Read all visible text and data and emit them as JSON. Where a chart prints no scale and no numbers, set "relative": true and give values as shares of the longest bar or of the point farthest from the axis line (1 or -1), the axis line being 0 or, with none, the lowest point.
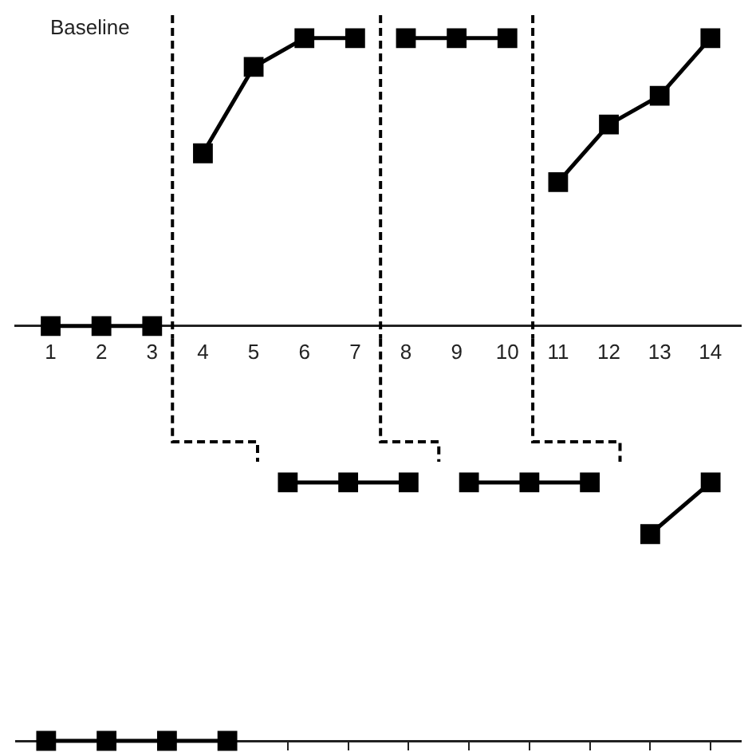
{
  "chart_data": [
    {
      "type": "line",
      "relative": true,
      "annotations": [
        "Baseline"
      ],
      "xlim": [
        0.3,
        14.6
      ],
      "xticks": [
        1,
        2,
        3,
        4,
        5,
        6,
        7,
        8,
        9,
        10,
        11,
        12,
        13,
        14
      ],
      "tick_labels": "x",
      "marker": "square",
      "line_style": "solid",
      "series": [
        {
          "color": "#000000",
          "x": [
            1,
            2,
            3
          ],
          "values": [
            0,
            0,
            0
          ]
        },
        {
          "color": "#000000",
          "x": [
            4,
            5,
            6,
            7
          ],
          "values": [
            0.6,
            0.9,
            1,
            1
          ]
        },
        {
          "color": "#000000",
          "x": [
            8,
            9,
            10
          ],
          "values": [
            1,
            1,
            1
          ]
        },
        {
          "color": "#000000",
          "x": [
            11,
            12,
            13,
            14
          ],
          "values": [
            0.5,
            0.7,
            0.8,
            1
          ]
        }
      ],
      "ref_lines": [
        {
          "axis": "x",
          "value": 3.4,
          "color": "#000000",
          "line_style": "dashed"
        },
        {
          "axis": "x",
          "value": 7.5,
          "color": "#000000",
          "line_style": "dashed"
        },
        {
          "axis": "x",
          "value": 10.5,
          "color": "#000000",
          "line_style": "dashed"
        }
      ]
    },
    {
      "type": "line",
      "relative": true,
      "categories": [
        null,
        null,
        null,
        null,
        null,
        null,
        null,
        null,
        null,
        null,
        null,
        null
      ],
      "tick_labels": false,
      "marker": "square",
      "line_style": "solid",
      "series": [
        {
          "color": "#000000",
          "values": [
            0,
            0,
            0,
            0,
            null,
            null,
            null,
            null,
            null,
            null,
            null,
            null
          ]
        },
        {
          "color": "#000000",
          "values": [
            null,
            null,
            null,
            null,
            1,
            1,
            1,
            null,
            null,
            null,
            null,
            null
          ]
        },
        {
          "color": "#000000",
          "values": [
            null,
            null,
            null,
            null,
            null,
            null,
            null,
            1,
            1,
            1,
            null,
            null
          ]
        },
        {
          "color": "#000000",
          "values": [
            null,
            null,
            null,
            null,
            null,
            null,
            null,
            null,
            null,
            null,
            0.8,
            1
          ]
        }
      ]
    }
  ]
}
